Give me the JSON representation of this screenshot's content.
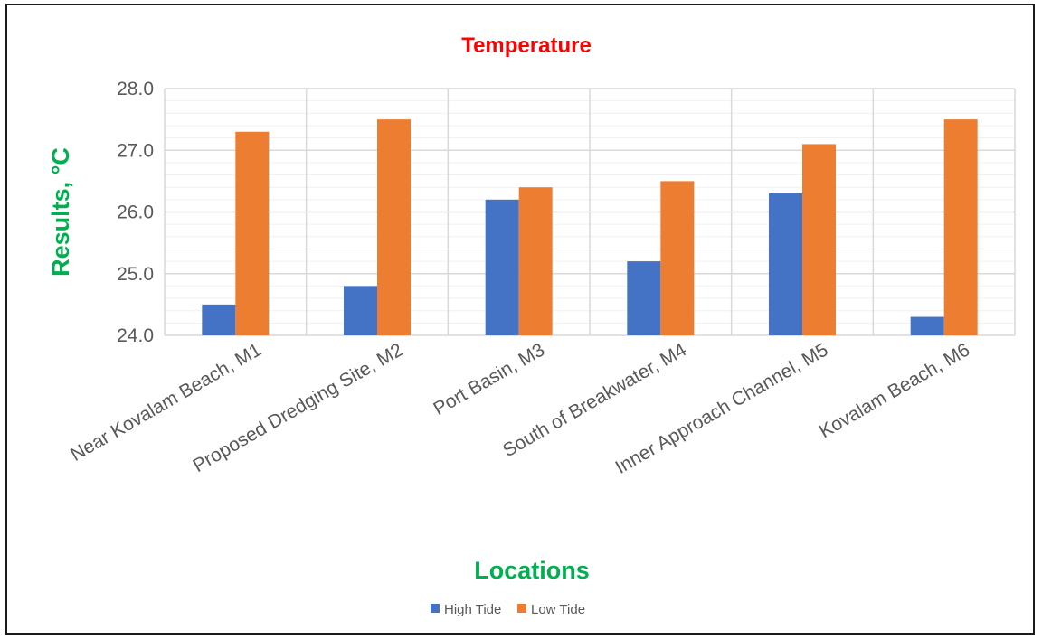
{
  "chart_data": {
    "type": "bar",
    "title": "Temperature",
    "xlabel": "Locations",
    "ylabel": "Results, °C",
    "ylim": [
      24.0,
      28.0
    ],
    "yticks": [
      "24.0",
      "25.0",
      "26.0",
      "27.0",
      "28.0"
    ],
    "grid": true,
    "legend_position": "bottom",
    "categories": [
      "Near Kovalam Beach, M1",
      "Proposed Dredging Site, M2",
      "Port Basin, M3",
      "South of Breakwater, M4",
      "Inner Approach Channel, M5",
      "Kovalam Beach, M6"
    ],
    "series": [
      {
        "name": "High Tide",
        "color": "#4472c4",
        "values": [
          24.5,
          24.8,
          26.2,
          25.2,
          26.3,
          24.3
        ]
      },
      {
        "name": "Low Tide",
        "color": "#ed7d31",
        "values": [
          27.3,
          27.5,
          26.4,
          26.5,
          27.1,
          27.5
        ]
      }
    ]
  }
}
